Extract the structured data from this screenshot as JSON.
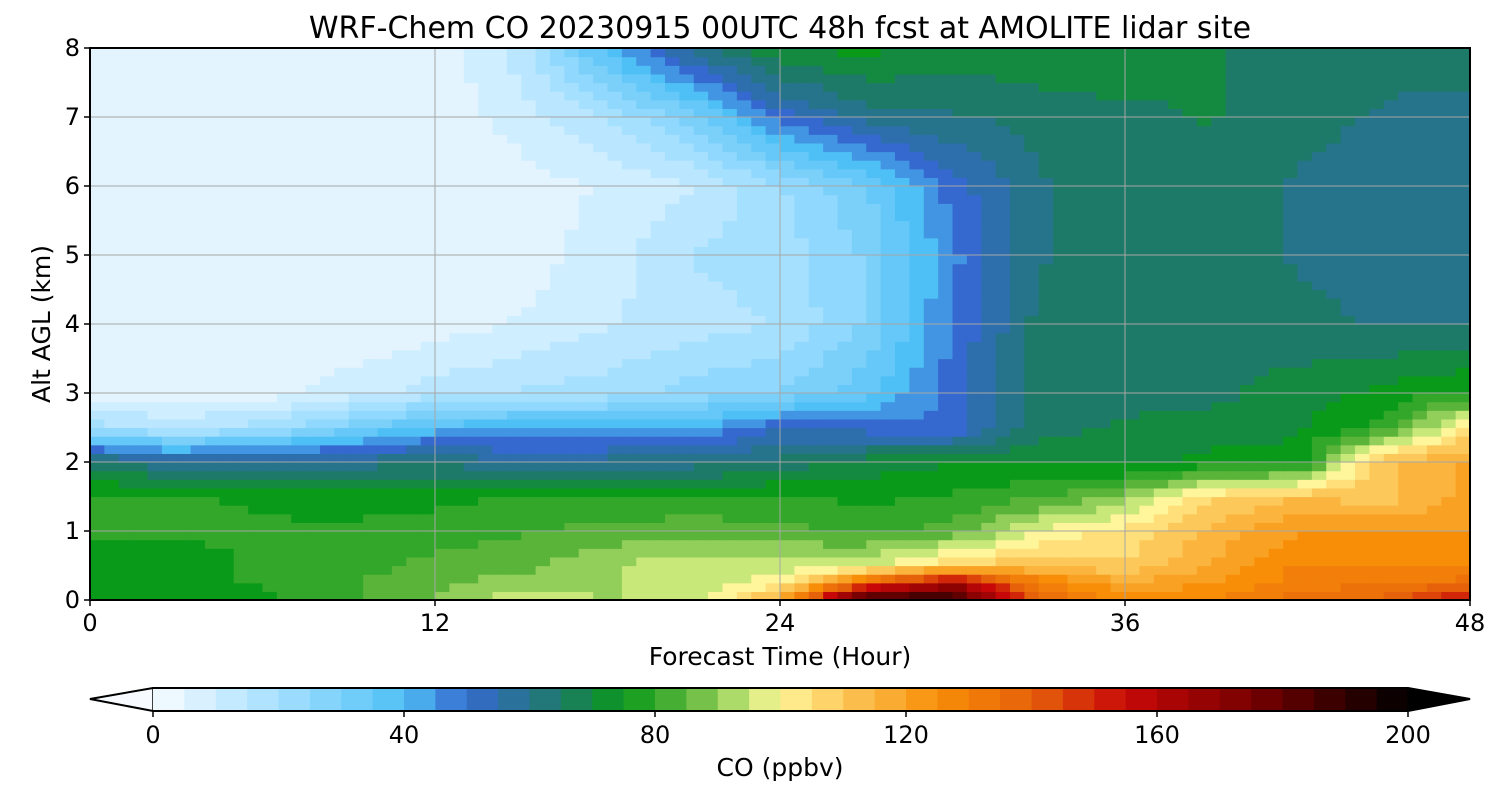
{
  "chart_data": {
    "type": "heatmap",
    "title": "WRF-Chem CO  20230915 00UTC 48h fcst at AMOLITE lidar site",
    "xlabel": "Forecast Time (Hour)",
    "ylabel": "Alt AGL (km)",
    "xlim": [
      0,
      48
    ],
    "ylim": [
      0,
      8
    ],
    "xticks": [
      0,
      12,
      24,
      36,
      48
    ],
    "yticks": [
      0,
      1,
      2,
      3,
      4,
      5,
      6,
      7,
      8
    ],
    "grid": true,
    "z_hours": [
      0,
      3,
      6,
      9,
      12,
      15,
      18,
      21,
      24,
      27,
      30,
      33,
      36,
      39,
      42,
      45,
      48
    ],
    "z_altitudes_km": [
      0,
      0.25,
      0.5,
      1,
      1.5,
      2,
      2.5,
      3,
      4,
      5,
      6,
      7,
      8
    ],
    "z_values_ppbv": [
      [
        72,
        75,
        76,
        82,
        88,
        96,
        92,
        94,
        118,
        195,
        190,
        140,
        125,
        128,
        135,
        138,
        160
      ],
      [
        74,
        76,
        78,
        82,
        86,
        90,
        92,
        94,
        100,
        140,
        165,
        130,
        118,
        122,
        130,
        132,
        135
      ],
      [
        75,
        76,
        78,
        80,
        84,
        86,
        92,
        96,
        94,
        96,
        108,
        112,
        108,
        118,
        128,
        128,
        126
      ],
      [
        78,
        78,
        78,
        78,
        80,
        82,
        84,
        86,
        84,
        82,
        84,
        98,
        104,
        114,
        122,
        122,
        122
      ],
      [
        78,
        78,
        77,
        76,
        76,
        78,
        78,
        78,
        78,
        76,
        78,
        82,
        90,
        106,
        112,
        110,
        120
      ],
      [
        66,
        58,
        60,
        60,
        62,
        58,
        60,
        60,
        64,
        70,
        72,
        72,
        70,
        74,
        74,
        112,
        118
      ],
      [
        20,
        15,
        20,
        30,
        40,
        42,
        40,
        42,
        52,
        50,
        48,
        66,
        68,
        70,
        72,
        80,
        105
      ],
      [
        5,
        5,
        5,
        10,
        15,
        18,
        20,
        25,
        28,
        36,
        50,
        66,
        66,
        66,
        70,
        74,
        78
      ],
      [
        3,
        3,
        3,
        3,
        5,
        8,
        12,
        15,
        18,
        28,
        48,
        64,
        65,
        66,
        64,
        62,
        62
      ],
      [
        3,
        3,
        3,
        3,
        4,
        5,
        10,
        18,
        20,
        28,
        46,
        62,
        64,
        64,
        62,
        60,
        60
      ],
      [
        3,
        3,
        3,
        3,
        4,
        5,
        8,
        12,
        22,
        32,
        50,
        62,
        64,
        64,
        62,
        60,
        60
      ],
      [
        3,
        3,
        3,
        3,
        4,
        10,
        18,
        30,
        50,
        60,
        62,
        64,
        66,
        68,
        64,
        62,
        60
      ],
      [
        3,
        3,
        3,
        3,
        4,
        15,
        40,
        60,
        72,
        74,
        70,
        72,
        72,
        68,
        66,
        64,
        66
      ]
    ],
    "colorbar": {
      "label": "CO  (ppbv)",
      "range": [
        0,
        200
      ],
      "ticks": [
        0,
        40,
        80,
        120,
        160,
        200
      ],
      "extend": "both",
      "colors": {
        "0": "#f7fbff",
        "20": "#a6e0ff",
        "40": "#4fc0f5",
        "50": "#3569d0",
        "65": "#1e7a68",
        "75": "#0a9a1a",
        "85": "#5ab43a",
        "95": "#c8e87a",
        "100": "#fff59a",
        "110": "#fcc85a",
        "125": "#f88e08",
        "140": "#e6620a",
        "155": "#c80808",
        "175": "#780000",
        "200": "#000000"
      }
    }
  }
}
